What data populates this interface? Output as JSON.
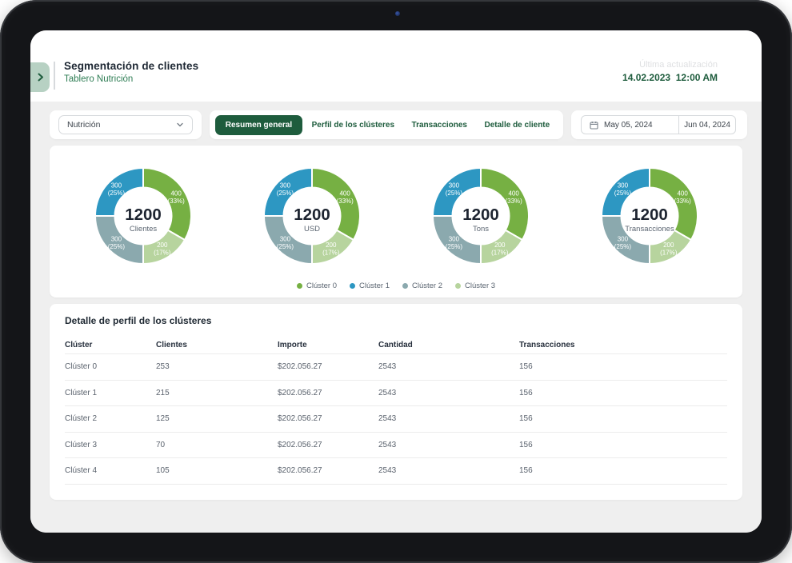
{
  "header": {
    "title": "Segmentación de clientes",
    "subtitle": "Tablero Nutrición",
    "last_update_label": "Última actualización",
    "last_update_value": "14.02.2023  12:00 AM"
  },
  "filters": {
    "dataset_select": {
      "value": "Nutrición"
    },
    "tabs": [
      {
        "label": "Resumen general",
        "active": true
      },
      {
        "label": "Perfil de los clústeres",
        "active": false
      },
      {
        "label": "Transacciones",
        "active": false
      },
      {
        "label": "Detalle de cliente",
        "active": false
      }
    ],
    "date_range": {
      "start": "May 05, 2024",
      "end": "Jun 04, 2024"
    }
  },
  "colors": {
    "brand_dark_green": "#1e5c3d",
    "cluster0": "#76b043",
    "cluster1": "#2d97c2",
    "cluster2": "#8ba9ae",
    "cluster3": "#b7d49e"
  },
  "chart_data": [
    {
      "type": "pie",
      "center_value": "1200",
      "center_label": "Clientes",
      "segments": [
        {
          "label": "Clúster 0",
          "value": 400,
          "pct": "33%",
          "color": "#76b043"
        },
        {
          "label": "Clúster 3",
          "value": 200,
          "pct": "17%",
          "color": "#b7d49e"
        },
        {
          "label": "Clúster 2",
          "value": 300,
          "pct": "25%",
          "color": "#8ba9ae"
        },
        {
          "label": "Clúster 1",
          "value": 300,
          "pct": "25%",
          "color": "#2d97c2"
        }
      ]
    },
    {
      "type": "pie",
      "center_value": "1200",
      "center_label": "USD",
      "segments": [
        {
          "label": "Clúster 0",
          "value": 400,
          "pct": "33%",
          "color": "#76b043"
        },
        {
          "label": "Clúster 3",
          "value": 200,
          "pct": "17%",
          "color": "#b7d49e"
        },
        {
          "label": "Clúster 2",
          "value": 300,
          "pct": "25%",
          "color": "#8ba9ae"
        },
        {
          "label": "Clúster 1",
          "value": 300,
          "pct": "25%",
          "color": "#2d97c2"
        }
      ]
    },
    {
      "type": "pie",
      "center_value": "1200",
      "center_label": "Tons",
      "segments": [
        {
          "label": "Clúster 0",
          "value": 400,
          "pct": "33%",
          "color": "#76b043"
        },
        {
          "label": "Clúster 3",
          "value": 200,
          "pct": "17%",
          "color": "#b7d49e"
        },
        {
          "label": "Clúster 2",
          "value": 300,
          "pct": "25%",
          "color": "#8ba9ae"
        },
        {
          "label": "Clúster 1",
          "value": 300,
          "pct": "25%",
          "color": "#2d97c2"
        }
      ]
    },
    {
      "type": "pie",
      "center_value": "1200",
      "center_label": "Transacciones",
      "segments": [
        {
          "label": "Clúster 0",
          "value": 400,
          "pct": "33%",
          "color": "#76b043"
        },
        {
          "label": "Clúster 3",
          "value": 200,
          "pct": "17%",
          "color": "#b7d49e"
        },
        {
          "label": "Clúster 2",
          "value": 300,
          "pct": "25%",
          "color": "#8ba9ae"
        },
        {
          "label": "Clúster 1",
          "value": 300,
          "pct": "25%",
          "color": "#2d97c2"
        }
      ]
    }
  ],
  "legend": [
    {
      "label": "Clúster 0",
      "color": "#76b043"
    },
    {
      "label": "Clúster 1",
      "color": "#2d97c2"
    },
    {
      "label": "Clúster 2",
      "color": "#8ba9ae"
    },
    {
      "label": "Clúster 3",
      "color": "#b7d49e"
    }
  ],
  "table": {
    "title": "Detalle de perfil de los clústeres",
    "headers": [
      "Clúster",
      "Clientes",
      "Importe",
      "Cantidad",
      "Transacciones"
    ],
    "rows": [
      [
        "Clúster 0",
        "253",
        "$202.056.27",
        "2543",
        "156"
      ],
      [
        "Clúster 1",
        "215",
        "$202.056.27",
        "2543",
        "156"
      ],
      [
        "Clúster 2",
        "125",
        "$202.056.27",
        "2543",
        "156"
      ],
      [
        "Clúster 3",
        "70",
        "$202.056.27",
        "2543",
        "156"
      ],
      [
        "Clúster 4",
        "105",
        "$202.056.27",
        "2543",
        "156"
      ]
    ]
  }
}
